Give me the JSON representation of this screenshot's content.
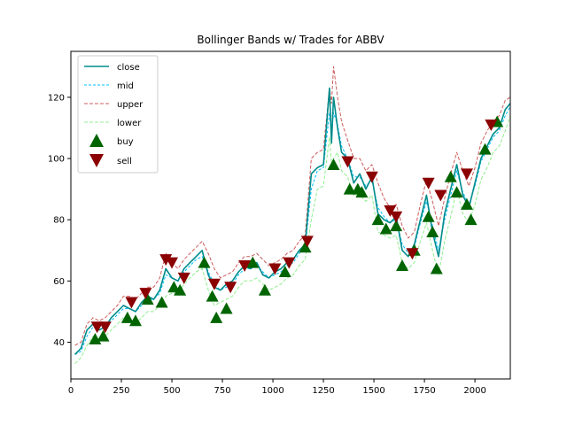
{
  "chart_data": {
    "type": "line",
    "title": "Bollinger Bands w/ Trades for ABBV",
    "xlabel": "",
    "ylabel": "",
    "xlim": [
      0,
      2175
    ],
    "ylim": [
      28,
      135
    ],
    "x_ticks": [
      0,
      250,
      500,
      750,
      1000,
      1250,
      1500,
      1750,
      2000
    ],
    "y_ticks": [
      40,
      60,
      80,
      100,
      120
    ],
    "grid": false,
    "legend_position": "top-left",
    "colors": {
      "close": "#008b8b",
      "mid": "#00bfff",
      "upper": "#cd5c5c",
      "lower": "#90ee90",
      "buy": "#006400",
      "sell": "#8b0000"
    },
    "series": [
      {
        "name": "close",
        "x": [
          20,
          50,
          80,
          110,
          140,
          170,
          200,
          230,
          260,
          290,
          320,
          350,
          380,
          410,
          440,
          470,
          500,
          530,
          560,
          590,
          620,
          650,
          680,
          710,
          740,
          770,
          800,
          830,
          860,
          890,
          920,
          950,
          980,
          1010,
          1040,
          1070,
          1100,
          1130,
          1160,
          1190,
          1220,
          1250,
          1280,
          1290,
          1300,
          1320,
          1340,
          1370,
          1400,
          1430,
          1460,
          1490,
          1520,
          1550,
          1580,
          1610,
          1640,
          1670,
          1700,
          1730,
          1760,
          1790,
          1820,
          1850,
          1880,
          1910,
          1940,
          1970,
          2000,
          2030,
          2060,
          2090,
          2120,
          2150,
          2175
        ],
        "values": [
          36,
          38,
          44,
          46,
          44,
          45,
          48,
          50,
          52,
          51,
          50,
          53,
          55,
          54,
          57,
          64,
          61,
          60,
          64,
          66,
          68,
          70,
          62,
          58,
          57,
          59,
          60,
          63,
          65,
          64,
          66,
          62,
          61,
          63,
          64,
          66,
          67,
          70,
          72,
          95,
          97,
          98,
          123,
          105,
          120,
          110,
          102,
          100,
          92,
          95,
          90,
          94,
          82,
          80,
          79,
          81,
          70,
          68,
          72,
          80,
          88,
          76,
          68,
          82,
          90,
          98,
          88,
          84,
          92,
          100,
          104,
          108,
          110,
          116,
          118
        ]
      },
      {
        "name": "mid",
        "x": [
          20,
          50,
          80,
          110,
          140,
          170,
          200,
          230,
          260,
          290,
          320,
          350,
          380,
          410,
          440,
          470,
          500,
          530,
          560,
          590,
          620,
          650,
          680,
          710,
          740,
          770,
          800,
          830,
          860,
          890,
          920,
          950,
          980,
          1010,
          1040,
          1070,
          1100,
          1130,
          1160,
          1190,
          1220,
          1250,
          1280,
          1290,
          1300,
          1320,
          1340,
          1370,
          1400,
          1430,
          1460,
          1490,
          1520,
          1550,
          1580,
          1610,
          1640,
          1670,
          1700,
          1730,
          1760,
          1790,
          1820,
          1850,
          1880,
          1910,
          1940,
          1970,
          2000,
          2030,
          2060,
          2090,
          2120,
          2150,
          2175
        ],
        "values": [
          36,
          37,
          42,
          45,
          44,
          45,
          47,
          49,
          51,
          51,
          50,
          52,
          54,
          54,
          56,
          62,
          61,
          60,
          63,
          65,
          67,
          68,
          63,
          59,
          57,
          58,
          59,
          62,
          64,
          64,
          65,
          63,
          61,
          62,
          63,
          65,
          66,
          69,
          71,
          90,
          96,
          97,
          115,
          108,
          115,
          111,
          104,
          100,
          94,
          94,
          91,
          93,
          84,
          81,
          79,
          80,
          72,
          69,
          71,
          79,
          86,
          78,
          70,
          80,
          88,
          96,
          89,
          85,
          91,
          99,
          103,
          107,
          109,
          114,
          117
        ]
      },
      {
        "name": "upper",
        "x": [
          20,
          50,
          80,
          110,
          140,
          170,
          200,
          230,
          260,
          290,
          320,
          350,
          380,
          410,
          440,
          470,
          500,
          530,
          560,
          590,
          620,
          650,
          680,
          710,
          740,
          770,
          800,
          830,
          860,
          890,
          920,
          950,
          980,
          1010,
          1040,
          1070,
          1100,
          1130,
          1160,
          1190,
          1220,
          1250,
          1280,
          1290,
          1300,
          1320,
          1340,
          1370,
          1400,
          1430,
          1460,
          1490,
          1520,
          1550,
          1580,
          1610,
          1640,
          1670,
          1700,
          1730,
          1760,
          1790,
          1820,
          1850,
          1880,
          1910,
          1940,
          1970,
          2000,
          2030,
          2060,
          2090,
          2120,
          2150,
          2175
        ],
        "values": [
          39,
          40,
          46,
          48,
          47,
          48,
          50,
          52,
          55,
          55,
          54,
          56,
          58,
          58,
          61,
          69,
          66,
          64,
          67,
          69,
          71,
          73,
          69,
          64,
          61,
          62,
          63,
          66,
          68,
          68,
          69,
          67,
          65,
          66,
          67,
          69,
          70,
          73,
          75,
          100,
          102,
          103,
          123,
          118,
          130,
          120,
          112,
          106,
          100,
          100,
          96,
          98,
          92,
          87,
          84,
          85,
          78,
          74,
          76,
          85,
          93,
          86,
          78,
          87,
          95,
          102,
          96,
          91,
          97,
          105,
          109,
          112,
          114,
          119,
          120
        ]
      },
      {
        "name": "lower",
        "x": [
          20,
          50,
          80,
          110,
          140,
          170,
          200,
          230,
          260,
          290,
          320,
          350,
          380,
          410,
          440,
          470,
          500,
          530,
          560,
          590,
          620,
          650,
          680,
          710,
          740,
          770,
          800,
          830,
          860,
          890,
          920,
          950,
          980,
          1010,
          1040,
          1070,
          1100,
          1130,
          1160,
          1190,
          1220,
          1250,
          1280,
          1290,
          1300,
          1320,
          1340,
          1370,
          1400,
          1430,
          1460,
          1490,
          1520,
          1550,
          1580,
          1610,
          1640,
          1670,
          1700,
          1730,
          1760,
          1790,
          1820,
          1850,
          1880,
          1910,
          1940,
          1970,
          2000,
          2030,
          2060,
          2090,
          2120,
          2150,
          2175
        ],
        "values": [
          33,
          35,
          39,
          42,
          41,
          42,
          44,
          46,
          48,
          47,
          46,
          48,
          50,
          50,
          52,
          55,
          56,
          56,
          59,
          61,
          63,
          64,
          57,
          52,
          53,
          54,
          55,
          58,
          60,
          60,
          61,
          59,
          57,
          58,
          59,
          61,
          62,
          65,
          67,
          80,
          90,
          91,
          107,
          98,
          100,
          102,
          96,
          94,
          88,
          88,
          86,
          88,
          76,
          75,
          74,
          75,
          66,
          64,
          66,
          73,
          79,
          70,
          62,
          73,
          81,
          90,
          82,
          79,
          85,
          93,
          97,
          102,
          104,
          109,
          114
        ]
      }
    ],
    "buy_points": {
      "name": "buy",
      "x": [
        120,
        160,
        280,
        320,
        380,
        450,
        510,
        540,
        660,
        700,
        720,
        770,
        900,
        960,
        1060,
        1160,
        1300,
        1380,
        1420,
        1440,
        1520,
        1560,
        1610,
        1640,
        1700,
        1770,
        1790,
        1810,
        1880,
        1910,
        1960,
        1980,
        2050,
        2110
      ],
      "values": [
        41,
        42,
        48,
        47,
        54,
        53,
        58,
        57,
        66,
        55,
        48,
        51,
        66,
        57,
        63,
        71,
        98,
        90,
        90,
        89,
        80,
        77,
        78,
        65,
        70,
        81,
        76,
        64,
        94,
        89,
        85,
        80,
        103,
        112
      ]
    },
    "sell_points": {
      "name": "sell",
      "x": [
        130,
        170,
        300,
        370,
        470,
        500,
        560,
        710,
        790,
        860,
        1010,
        1080,
        1170,
        1370,
        1490,
        1580,
        1610,
        1690,
        1770,
        1830,
        1960,
        2080
      ],
      "values": [
        45,
        45,
        53,
        56,
        67,
        66,
        61,
        59,
        58,
        65,
        64,
        66,
        73,
        99,
        94,
        83,
        81,
        69,
        92,
        88,
        95,
        111
      ]
    }
  }
}
